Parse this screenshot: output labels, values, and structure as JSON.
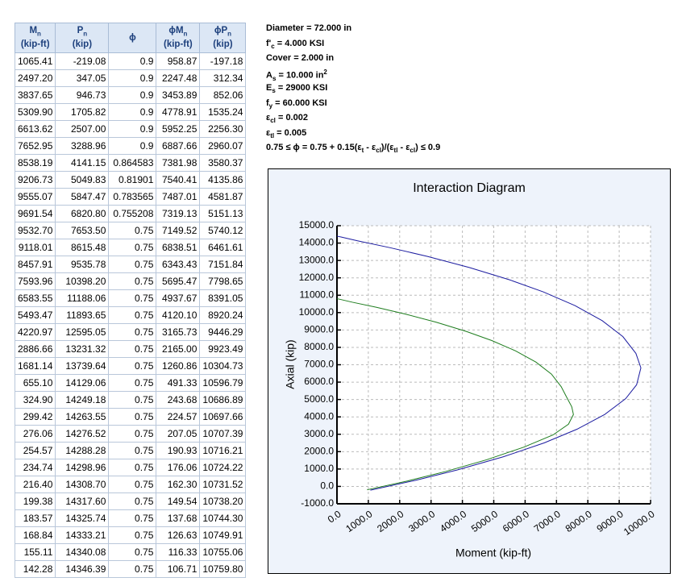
{
  "table": {
    "header": [
      {
        "main": "M",
        "sub": "n",
        "unit": "(kip-ft)"
      },
      {
        "main": "P",
        "sub": "n",
        "unit": "(kip)"
      },
      {
        "main": "ϕ"
      },
      {
        "main": "ϕM",
        "sub": "n",
        "unit": "(kip-ft)"
      },
      {
        "main": "ϕP",
        "sub": "n",
        "unit": "(kip)"
      }
    ],
    "rows": [
      [
        "1065.41",
        "-219.08",
        "0.9",
        "958.87",
        "-197.18"
      ],
      [
        "2497.20",
        "347.05",
        "0.9",
        "2247.48",
        "312.34"
      ],
      [
        "3837.65",
        "946.73",
        "0.9",
        "3453.89",
        "852.06"
      ],
      [
        "5309.90",
        "1705.82",
        "0.9",
        "4778.91",
        "1535.24"
      ],
      [
        "6613.62",
        "2507.00",
        "0.9",
        "5952.25",
        "2256.30"
      ],
      [
        "7652.95",
        "3288.96",
        "0.9",
        "6887.66",
        "2960.07"
      ],
      [
        "8538.19",
        "4141.15",
        "0.864583",
        "7381.98",
        "3580.37"
      ],
      [
        "9206.73",
        "5049.83",
        "0.81901",
        "7540.41",
        "4135.86"
      ],
      [
        "9555.07",
        "5847.47",
        "0.783565",
        "7487.01",
        "4581.87"
      ],
      [
        "9691.54",
        "6820.80",
        "0.755208",
        "7319.13",
        "5151.13"
      ],
      [
        "9532.70",
        "7653.50",
        "0.75",
        "7149.52",
        "5740.12"
      ],
      [
        "9118.01",
        "8615.48",
        "0.75",
        "6838.51",
        "6461.61"
      ],
      [
        "8457.91",
        "9535.78",
        "0.75",
        "6343.43",
        "7151.84"
      ],
      [
        "7593.96",
        "10398.20",
        "0.75",
        "5695.47",
        "7798.65"
      ],
      [
        "6583.55",
        "11188.06",
        "0.75",
        "4937.67",
        "8391.05"
      ],
      [
        "5493.47",
        "11893.65",
        "0.75",
        "4120.10",
        "8920.24"
      ],
      [
        "4220.97",
        "12595.05",
        "0.75",
        "3165.73",
        "9446.29"
      ],
      [
        "2886.66",
        "13231.32",
        "0.75",
        "2165.00",
        "9923.49"
      ],
      [
        "1681.14",
        "13739.64",
        "0.75",
        "1260.86",
        "10304.73"
      ],
      [
        "655.10",
        "14129.06",
        "0.75",
        "491.33",
        "10596.79"
      ],
      [
        "324.90",
        "14249.18",
        "0.75",
        "243.68",
        "10686.89"
      ],
      [
        "299.42",
        "14263.55",
        "0.75",
        "224.57",
        "10697.66"
      ],
      [
        "276.06",
        "14276.52",
        "0.75",
        "207.05",
        "10707.39"
      ],
      [
        "254.57",
        "14288.28",
        "0.75",
        "190.93",
        "10716.21"
      ],
      [
        "234.74",
        "14298.96",
        "0.75",
        "176.06",
        "10724.22"
      ],
      [
        "216.40",
        "14308.70",
        "0.75",
        "162.30",
        "10731.52"
      ],
      [
        "199.38",
        "14317.60",
        "0.75",
        "149.54",
        "10738.20"
      ],
      [
        "183.57",
        "14325.74",
        "0.75",
        "137.68",
        "10744.30"
      ],
      [
        "168.84",
        "14333.21",
        "0.75",
        "126.63",
        "10749.91"
      ],
      [
        "155.11",
        "14340.08",
        "0.75",
        "116.33",
        "10755.06"
      ],
      [
        "142.28",
        "14346.39",
        "0.75",
        "106.71",
        "10759.80"
      ]
    ]
  },
  "properties": [
    [
      "Diameter = 72.000 in"
    ],
    [
      "f'",
      "c",
      " = 4.000 KSI"
    ],
    [
      "Cover = 2.000 in"
    ],
    [
      "A",
      "s",
      " = 10.000 in",
      "2"
    ],
    [
      "E",
      "s",
      " = 29000 KSI"
    ],
    [
      "f",
      "y",
      " = 60.000 KSI"
    ],
    [
      "ε",
      "cl",
      " = 0.002"
    ],
    [
      "ε",
      "tl",
      " = 0.005"
    ],
    [
      "0.75 ≤ ϕ = 0.75 + 0.15(ε",
      "t",
      " - ε",
      "cl",
      ")/(ε",
      "tl",
      " - ε",
      "cl",
      ") ≤ 0.9"
    ]
  ],
  "chart_data": {
    "type": "line",
    "title": "Interaction Diagram",
    "xlabel": "Moment (kip-ft)",
    "ylabel": "Axial (kip)",
    "grid": true,
    "xlim": [
      0,
      10000
    ],
    "ylim": [
      -1000,
      15000
    ],
    "xticks": [
      {
        "value": 0,
        "label": "0.0"
      },
      {
        "value": 1000,
        "label": "1000.0"
      },
      {
        "value": 2000,
        "label": "2000.0"
      },
      {
        "value": 3000,
        "label": "3000.0"
      },
      {
        "value": 4000,
        "label": "4000.0"
      },
      {
        "value": 5000,
        "label": "5000.0"
      },
      {
        "value": 6000,
        "label": "6000.0"
      },
      {
        "value": 7000,
        "label": "7000.0"
      },
      {
        "value": 8000,
        "label": "8000.0"
      },
      {
        "value": 9000,
        "label": "9000.0"
      },
      {
        "value": 10000,
        "label": "10000.0"
      }
    ],
    "yticks": [
      {
        "value": -1000,
        "label": "-1000.0"
      },
      {
        "value": 0,
        "label": "0.0"
      },
      {
        "value": 1000,
        "label": "1000.0"
      },
      {
        "value": 2000,
        "label": "2000.0"
      },
      {
        "value": 3000,
        "label": "3000.0"
      },
      {
        "value": 4000,
        "label": "4000.0"
      },
      {
        "value": 5000,
        "label": "5000.0"
      },
      {
        "value": 6000,
        "label": "6000.0"
      },
      {
        "value": 7000,
        "label": "7000.0"
      },
      {
        "value": 8000,
        "label": "8000.0"
      },
      {
        "value": 9000,
        "label": "9000.0"
      },
      {
        "value": 10000,
        "label": "10000.0"
      },
      {
        "value": 11000,
        "label": "11000.0"
      },
      {
        "value": 12000,
        "label": "12000.0"
      },
      {
        "value": 13000,
        "label": "13000.0"
      },
      {
        "value": 14000,
        "label": "14000.0"
      },
      {
        "value": 15000,
        "label": "15000.0"
      }
    ],
    "series": [
      {
        "color": "#1c1ca0",
        "x": [
          1065.41,
          2497.2,
          3837.65,
          5309.9,
          6613.62,
          7652.95,
          8538.19,
          9206.73,
          9555.07,
          9691.54,
          9532.7,
          9118.01,
          8457.91,
          7593.96,
          6583.55,
          5493.47,
          4220.97,
          2886.66,
          1681.14,
          655.1,
          142.28,
          0
        ],
        "values": [
          -219.08,
          347.05,
          946.73,
          1705.82,
          2507.0,
          3288.96,
          4141.15,
          5049.83,
          5847.47,
          6820.8,
          7653.5,
          8615.48,
          9535.78,
          10398.2,
          11188.06,
          11893.65,
          12595.05,
          13231.32,
          13739.64,
          14129.06,
          14346.39,
          14400
        ]
      },
      {
        "color": "#1e7d1e",
        "x": [
          958.87,
          2247.48,
          3453.89,
          4778.91,
          5952.25,
          6887.66,
          7381.98,
          7540.41,
          7487.01,
          7319.13,
          7149.52,
          6838.51,
          6343.43,
          5695.47,
          4937.67,
          4120.1,
          3165.73,
          2165.0,
          1260.86,
          491.33,
          106.71,
          0
        ],
        "values": [
          -197.18,
          312.34,
          852.06,
          1535.24,
          2256.3,
          2960.07,
          3580.37,
          4135.86,
          4581.87,
          5151.13,
          5740.12,
          6461.61,
          7151.84,
          7798.65,
          8391.05,
          8920.24,
          9446.29,
          9923.49,
          10304.73,
          10596.79,
          10759.8,
          10800
        ]
      }
    ]
  }
}
